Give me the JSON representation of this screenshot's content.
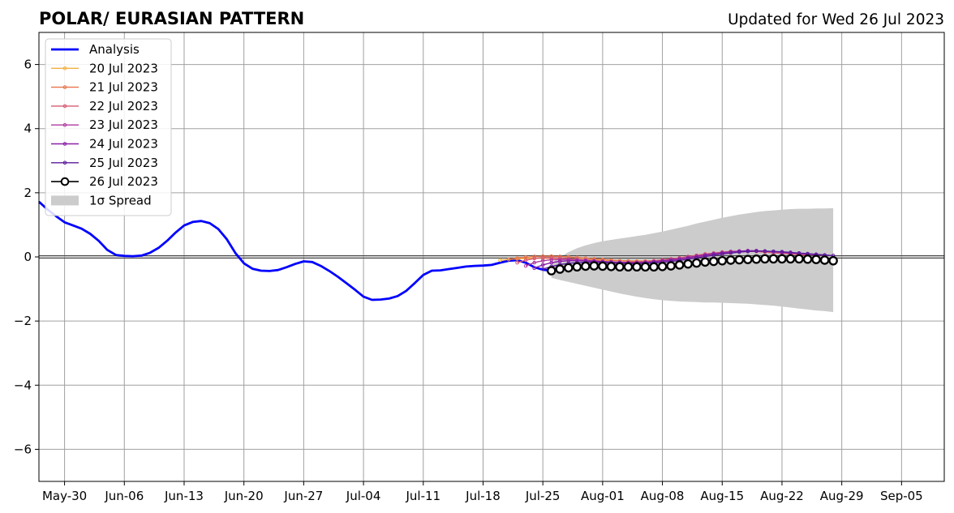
{
  "chart_data": {
    "type": "line",
    "title": "POLAR/ EURASIAN  PATTERN",
    "subtitle": "Updated for Wed 26 Jul 2023",
    "xlabel": "",
    "ylabel": "",
    "x_range": [
      "2023-05-27",
      "2023-09-10"
    ],
    "ylim": [
      -7,
      7
    ],
    "yticks": [
      -6,
      -4,
      -2,
      0,
      2,
      4,
      6
    ],
    "ytick_labels": [
      "−6",
      "−4",
      "−2",
      "0",
      "2",
      "4",
      "6"
    ],
    "xticks": [
      "2023-05-30",
      "2023-06-06",
      "2023-06-13",
      "2023-06-20",
      "2023-06-27",
      "2023-07-04",
      "2023-07-11",
      "2023-07-18",
      "2023-07-25",
      "2023-08-01",
      "2023-08-08",
      "2023-08-15",
      "2023-08-22",
      "2023-08-29",
      "2023-09-05"
    ],
    "xtick_labels": [
      "May-30",
      "Jun-06",
      "Jun-13",
      "Jun-20",
      "Jun-27",
      "Jul-04",
      "Jul-11",
      "Jul-18",
      "Jul-25",
      "Aug-01",
      "Aug-08",
      "Aug-15",
      "Aug-22",
      "Aug-29",
      "Sep-05"
    ],
    "grid": true,
    "legend_position": "top-left",
    "analysis": {
      "name": "Analysis",
      "color": "#0000ff",
      "start": "2023-05-27",
      "values": [
        1.72,
        1.48,
        1.27,
        1.08,
        0.98,
        0.88,
        0.72,
        0.5,
        0.22,
        0.06,
        0.03,
        0.02,
        0.04,
        0.13,
        0.28,
        0.5,
        0.76,
        0.98,
        1.09,
        1.12,
        1.05,
        0.87,
        0.55,
        0.12,
        -0.2,
        -0.37,
        -0.43,
        -0.44,
        -0.41,
        -0.32,
        -0.22,
        -0.14,
        -0.16,
        -0.28,
        -0.44,
        -0.62,
        -0.82,
        -1.02,
        -1.24,
        -1.34,
        -1.33,
        -1.3,
        -1.22,
        -1.06,
        -0.82,
        -0.56,
        -0.43,
        -0.42,
        -0.38,
        -0.34,
        -0.3,
        -0.28,
        -0.27,
        -0.25,
        -0.18,
        -0.12,
        -0.1,
        -0.18,
        -0.32,
        -0.4,
        -0.43
      ]
    },
    "forecasts": [
      {
        "name": "20 Jul 2023",
        "color": "#f5b041",
        "start": "2023-07-20",
        "values": [
          -0.1,
          -0.08,
          -0.06,
          -0.05,
          -0.04,
          -0.04,
          -0.05,
          -0.05,
          -0.06,
          -0.07,
          -0.08,
          -0.09,
          -0.1,
          -0.11,
          -0.12,
          -0.13,
          -0.13,
          -0.13,
          -0.12,
          -0.1,
          -0.08,
          -0.05,
          -0.02,
          0.02,
          0.06,
          0.1,
          0.13,
          0.15,
          0.16,
          0.17,
          0.17,
          0.16,
          0.15,
          0.13,
          0.12
        ]
      },
      {
        "name": "21 Jul 2023",
        "color": "#e8734a",
        "start": "2023-07-21",
        "values": [
          -0.08,
          -0.04,
          -0.01,
          0.01,
          0.02,
          0.02,
          0.01,
          0.0,
          -0.02,
          -0.04,
          -0.06,
          -0.08,
          -0.1,
          -0.12,
          -0.13,
          -0.14,
          -0.14,
          -0.13,
          -0.12,
          -0.1,
          -0.07,
          -0.04,
          0.0,
          0.04,
          0.08,
          0.12,
          0.15,
          0.17,
          0.18,
          0.18,
          0.17,
          0.16,
          0.14,
          0.12,
          0.1
        ]
      },
      {
        "name": "22 Jul 2023",
        "color": "#d65a72",
        "start": "2023-07-22",
        "values": [
          -0.18,
          -0.1,
          -0.05,
          -0.03,
          -0.03,
          -0.04,
          -0.06,
          -0.08,
          -0.1,
          -0.12,
          -0.14,
          -0.16,
          -0.17,
          -0.17,
          -0.16,
          -0.14,
          -0.12,
          -0.09,
          -0.06,
          -0.03,
          0.01,
          0.05,
          0.09,
          0.12,
          0.15,
          0.17,
          0.18,
          0.18,
          0.17,
          0.15,
          0.13,
          0.11,
          0.09,
          0.07,
          0.05
        ]
      },
      {
        "name": "23 Jul 2023",
        "color": "#b03aa0",
        "start": "2023-07-23",
        "values": [
          -0.28,
          -0.18,
          -0.12,
          -0.09,
          -0.08,
          -0.08,
          -0.09,
          -0.1,
          -0.12,
          -0.14,
          -0.16,
          -0.18,
          -0.19,
          -0.19,
          -0.18,
          -0.16,
          -0.13,
          -0.1,
          -0.07,
          -0.03,
          0.01,
          0.05,
          0.09,
          0.13,
          0.16,
          0.18,
          0.19,
          0.19,
          0.18,
          0.16,
          0.14,
          0.12,
          0.1,
          0.08,
          0.06
        ]
      },
      {
        "name": "24 Jul 2023",
        "color": "#8b1fa8",
        "start": "2023-07-24",
        "values": [
          -0.35,
          -0.25,
          -0.18,
          -0.14,
          -0.12,
          -0.12,
          -0.13,
          -0.14,
          -0.15,
          -0.16,
          -0.17,
          -0.18,
          -0.18,
          -0.17,
          -0.15,
          -0.12,
          -0.09,
          -0.06,
          -0.02,
          0.02,
          0.06,
          0.1,
          0.13,
          0.16,
          0.18,
          0.19,
          0.19,
          0.18,
          0.17,
          0.15,
          0.13,
          0.11,
          0.09,
          0.07,
          0.05
        ]
      },
      {
        "name": "25 Jul 2023",
        "color": "#5a1a9c",
        "start": "2023-07-25",
        "values": [
          -0.38,
          -0.3,
          -0.24,
          -0.2,
          -0.18,
          -0.17,
          -0.17,
          -0.18,
          -0.19,
          -0.2,
          -0.21,
          -0.21,
          -0.2,
          -0.19,
          -0.17,
          -0.14,
          -0.11,
          -0.07,
          -0.03,
          0.01,
          0.05,
          0.09,
          0.12,
          0.15,
          0.17,
          0.18,
          0.18,
          0.17,
          0.16,
          0.14,
          0.12,
          0.1,
          0.08,
          0.06,
          0.04
        ]
      }
    ],
    "current": {
      "name": "26 Jul 2023",
      "color": "#000000",
      "start": "2023-07-26",
      "values": [
        -0.43,
        -0.38,
        -0.34,
        -0.31,
        -0.29,
        -0.28,
        -0.29,
        -0.3,
        -0.31,
        -0.31,
        -0.31,
        -0.31,
        -0.31,
        -0.3,
        -0.28,
        -0.25,
        -0.22,
        -0.19,
        -0.16,
        -0.14,
        -0.12,
        -0.1,
        -0.09,
        -0.08,
        -0.07,
        -0.06,
        -0.06,
        -0.06,
        -0.06,
        -0.06,
        -0.07,
        -0.08,
        -0.1,
        -0.12
      ]
    },
    "spread": {
      "name": "1σ Spread",
      "color": "#cccccc",
      "start": "2023-07-26",
      "upper": [
        -0.2,
        0.0,
        0.15,
        0.27,
        0.36,
        0.43,
        0.49,
        0.53,
        0.57,
        0.61,
        0.65,
        0.69,
        0.74,
        0.79,
        0.85,
        0.91,
        0.97,
        1.04,
        1.1,
        1.16,
        1.22,
        1.27,
        1.32,
        1.36,
        1.4,
        1.43,
        1.45,
        1.47,
        1.49,
        1.5,
        1.5,
        1.51,
        1.51,
        1.52
      ],
      "lower": [
        -0.65,
        -0.72,
        -0.78,
        -0.84,
        -0.9,
        -0.96,
        -1.02,
        -1.08,
        -1.14,
        -1.19,
        -1.24,
        -1.28,
        -1.32,
        -1.35,
        -1.37,
        -1.39,
        -1.4,
        -1.41,
        -1.42,
        -1.42,
        -1.43,
        -1.44,
        -1.45,
        -1.46,
        -1.48,
        -1.5,
        -1.52,
        -1.55,
        -1.58,
        -1.61,
        -1.64,
        -1.67,
        -1.69,
        -1.72
      ]
    },
    "zero_line_color": "#444444"
  }
}
